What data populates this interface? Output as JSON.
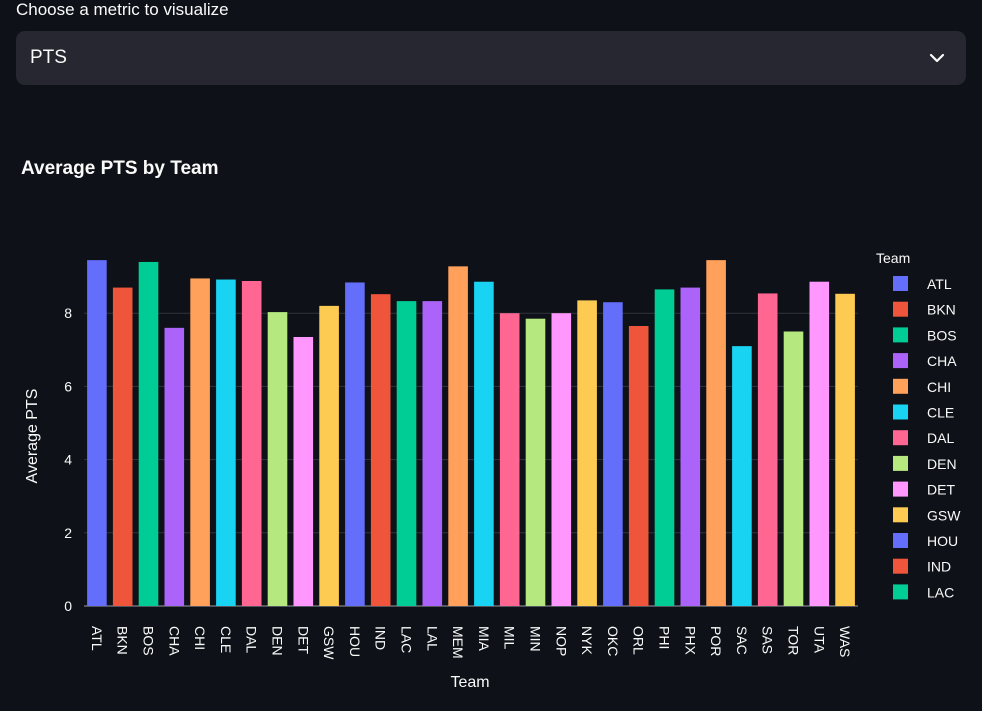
{
  "select": {
    "label": "Choose a metric to visualize",
    "value": "PTS",
    "icon": "chevron-down-icon"
  },
  "chart_data": {
    "type": "bar",
    "title": "Average PTS by Team",
    "xlabel": "Team",
    "ylabel": "Average PTS",
    "ylim": [
      0,
      10
    ],
    "yticks": [
      0,
      2,
      4,
      6,
      8
    ],
    "grid": true,
    "legend_title": "Team",
    "legend_position": "right",
    "categories": [
      "ATL",
      "BKN",
      "BOS",
      "CHA",
      "CHI",
      "CLE",
      "DAL",
      "DEN",
      "DET",
      "GSW",
      "HOU",
      "IND",
      "LAC",
      "LAL",
      "MEM",
      "MIA",
      "MIL",
      "MIN",
      "NOP",
      "NYK",
      "OKC",
      "ORL",
      "PHI",
      "PHX",
      "POR",
      "SAC",
      "SAS",
      "TOR",
      "UTA",
      "WAS"
    ],
    "values": [
      9.45,
      8.7,
      9.4,
      7.6,
      8.95,
      8.92,
      8.88,
      8.03,
      7.35,
      8.2,
      8.84,
      8.52,
      8.33,
      8.33,
      9.28,
      8.86,
      8.0,
      7.85,
      8.0,
      8.35,
      8.3,
      7.65,
      8.65,
      8.7,
      9.45,
      7.1,
      8.54,
      7.5,
      8.86,
      8.53
    ],
    "colors": [
      "#636efa",
      "#ef553b",
      "#00cc96",
      "#ab63fa",
      "#ffa15a",
      "#19d3f3",
      "#ff6692",
      "#b6e880",
      "#ff97ff",
      "#fecb52"
    ],
    "legend_visible": [
      "ATL",
      "BKN",
      "BOS",
      "CHA",
      "CHI",
      "CLE",
      "DAL",
      "DEN",
      "DET",
      "GSW",
      "HOU",
      "IND",
      "LAC"
    ]
  }
}
